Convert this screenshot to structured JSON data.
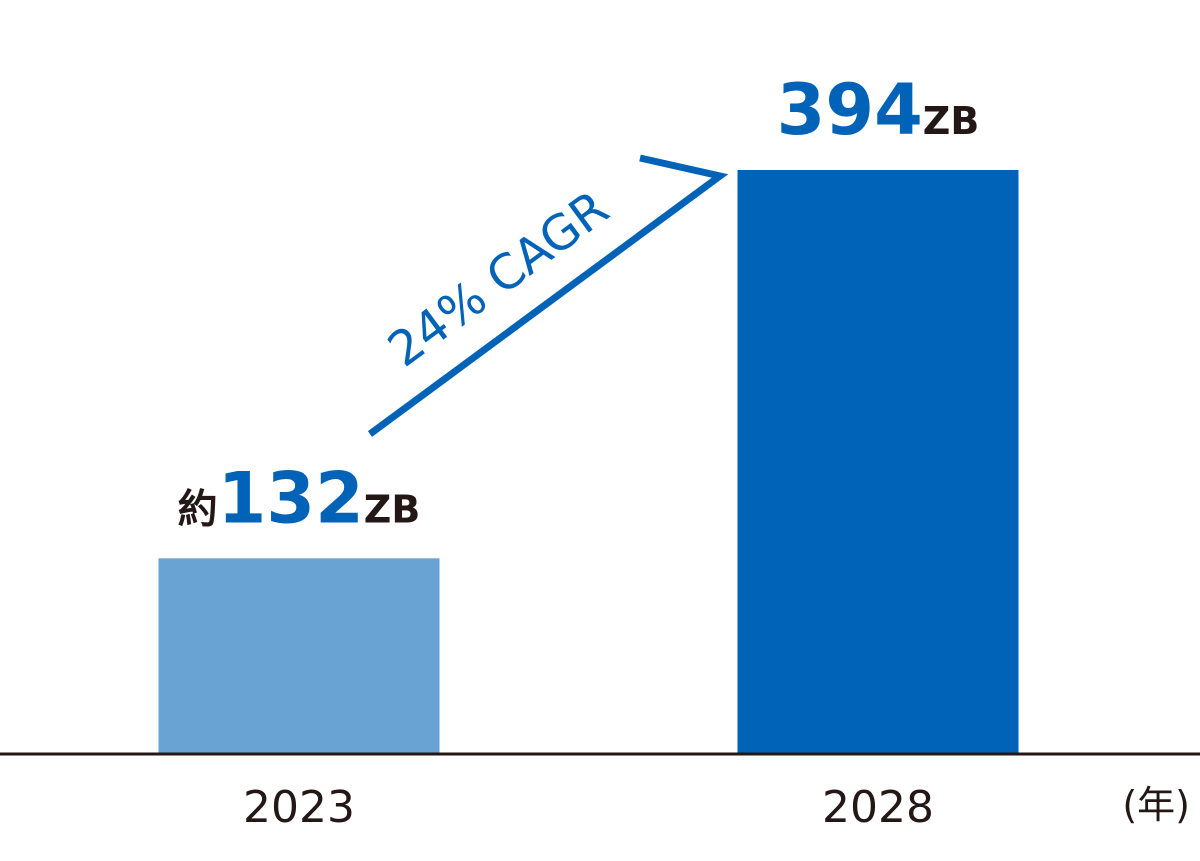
{
  "chart_data": {
    "type": "bar",
    "categories": [
      "2023",
      "2028"
    ],
    "values": [
      132,
      394
    ],
    "value_labels": [
      {
        "prefix": "約",
        "number": "132",
        "unit": "ZB"
      },
      {
        "prefix": "",
        "number": "394",
        "unit": "ZB"
      }
    ],
    "bar_colors": [
      "#68a3d4",
      "#0063b8"
    ],
    "x_unit_label": "(年)",
    "annotation": "24% CAGR",
    "annotation_color": "#0063b8",
    "title": "",
    "xlabel": "",
    "ylabel": "",
    "ylim": [
      0,
      455
    ],
    "grid": false,
    "axis_color": "#231815"
  }
}
